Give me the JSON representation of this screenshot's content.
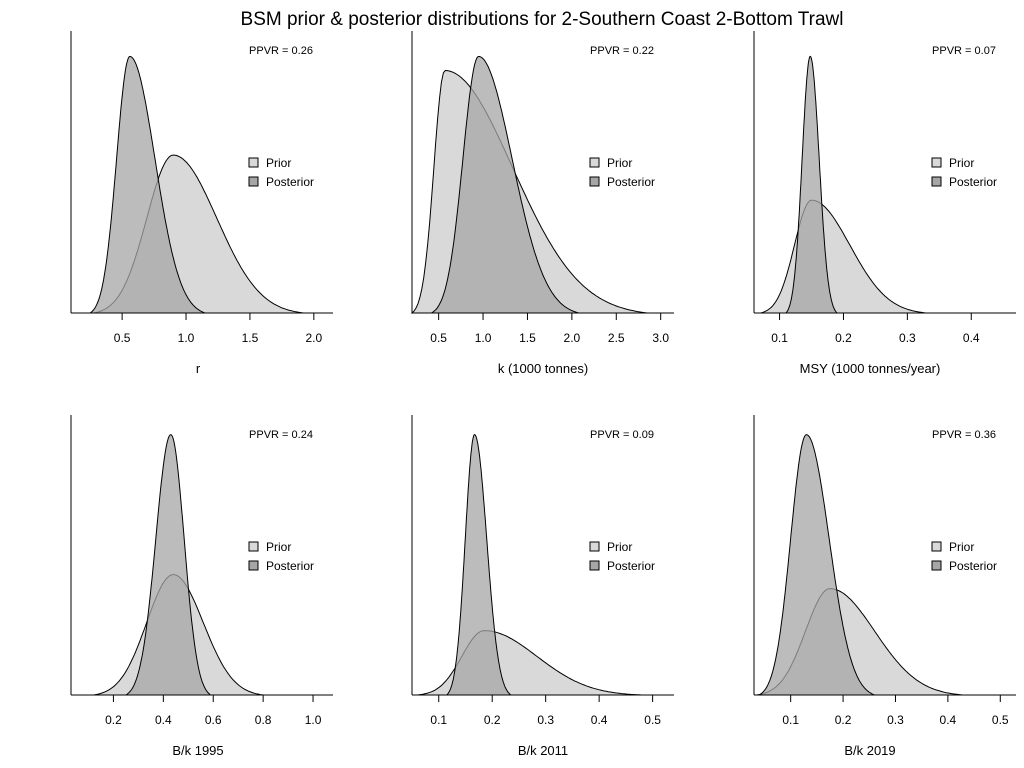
{
  "title": "BSM prior & posterior distributions for 2-Southern Coast 2-Bottom Trawl",
  "legend": {
    "prior": "Prior",
    "posterior": "Posterior"
  },
  "colors": {
    "prior_fill": "#d9d9d9",
    "posterior_fill": "#a6a6a6",
    "outline": "#000000"
  },
  "chart_data": [
    {
      "type": "area",
      "xlabel": "r",
      "ppvr": "PPVR = 0.26",
      "xlim": [
        0.1,
        2.15
      ],
      "ticks": [
        0.5,
        1.0,
        1.5,
        2.0
      ],
      "tick_labels": [
        "0.5",
        "1.0",
        "1.5",
        "2.0"
      ],
      "prior": {
        "mode": 0.9,
        "range": [
          0.28,
          1.92
        ]
      },
      "posterior": {
        "mode": 0.56,
        "range": [
          0.25,
          1.15
        ]
      },
      "legend_position": "center-right"
    },
    {
      "type": "area",
      "xlabel": "k (1000 tonnes)",
      "ppvr": "PPVR = 0.22",
      "xlim": [
        0.2,
        3.15
      ],
      "ticks": [
        0.5,
        1.0,
        1.5,
        2.0,
        2.5,
        3.0
      ],
      "tick_labels": [
        "0.5",
        "1.0",
        "1.5",
        "2.0",
        "2.5",
        "3.0"
      ],
      "prior": {
        "mode": 0.57,
        "range": [
          0.2,
          2.85
        ]
      },
      "posterior": {
        "mode": 0.95,
        "range": [
          0.42,
          2.08
        ]
      },
      "legend_position": "center-right"
    },
    {
      "type": "area",
      "xlabel": "MSY (1000 tonnes/year)",
      "ppvr": "PPVR = 0.07",
      "xlim": [
        0.06,
        0.47
      ],
      "ticks": [
        0.1,
        0.2,
        0.3,
        0.4
      ],
      "tick_labels": [
        "0.1",
        "0.2",
        "0.3",
        "0.4"
      ],
      "prior": {
        "mode": 0.15,
        "range": [
          0.07,
          0.33
        ]
      },
      "posterior": {
        "mode": 0.148,
        "range": [
          0.11,
          0.19
        ]
      },
      "legend_position": "center-right"
    },
    {
      "type": "area",
      "xlabel": "B/k 1995",
      "ppvr": "PPVR = 0.24",
      "xlim": [
        0.03,
        1.08
      ],
      "ticks": [
        0.2,
        0.4,
        0.6,
        0.8,
        1.0
      ],
      "tick_labels": [
        "0.2",
        "0.4",
        "0.6",
        "0.8",
        "1.0"
      ],
      "prior": {
        "mode": 0.44,
        "range": [
          0.12,
          0.8
        ]
      },
      "posterior": {
        "mode": 0.43,
        "range": [
          0.25,
          0.59
        ]
      },
      "legend_position": "center-right"
    },
    {
      "type": "area",
      "xlabel": "B/k 2011",
      "ppvr": "PPVR = 0.09",
      "xlim": [
        0.05,
        0.54
      ],
      "ticks": [
        0.1,
        0.2,
        0.3,
        0.4,
        0.5
      ],
      "tick_labels": [
        "0.1",
        "0.2",
        "0.3",
        "0.4",
        "0.5"
      ],
      "prior": {
        "mode": 0.185,
        "range": [
          0.06,
          0.48
        ]
      },
      "posterior": {
        "mode": 0.167,
        "range": [
          0.115,
          0.235
        ]
      },
      "legend_position": "center-right"
    },
    {
      "type": "area",
      "xlabel": "B/k 2019",
      "ppvr": "PPVR = 0.36",
      "xlim": [
        0.03,
        0.53
      ],
      "ticks": [
        0.1,
        0.2,
        0.3,
        0.4,
        0.5
      ],
      "tick_labels": [
        "0.1",
        "0.2",
        "0.3",
        "0.4",
        "0.5"
      ],
      "prior": {
        "mode": 0.175,
        "range": [
          0.035,
          0.43
        ]
      },
      "posterior": {
        "mode": 0.13,
        "range": [
          0.04,
          0.26
        ]
      },
      "legend_position": "center-right"
    }
  ]
}
